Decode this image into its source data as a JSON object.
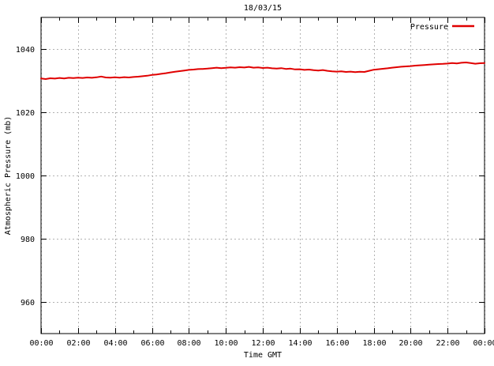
{
  "title": "18/03/15",
  "legend": {
    "label": "Pressure"
  },
  "axes": {
    "y_label": "Atmospheric Pressure (mb)",
    "x_label": "Time GMT"
  },
  "colors": {
    "line": "#e00000",
    "grid": "#b3b3b3",
    "border": "#000000",
    "background": "#ffffff",
    "text": "#000000"
  },
  "chart_data": {
    "type": "line",
    "title": "18/03/15",
    "xlabel": "Time GMT",
    "ylabel": "Atmospheric Pressure (mb)",
    "xlim_hours": [
      0,
      24
    ],
    "ylim": [
      950,
      1050
    ],
    "grid": true,
    "legend_position": "top-right-inside",
    "xticks": [
      {
        "hour": 0,
        "label": "00:00"
      },
      {
        "hour": 2,
        "label": "02:00"
      },
      {
        "hour": 4,
        "label": "04:00"
      },
      {
        "hour": 6,
        "label": "06:00"
      },
      {
        "hour": 8,
        "label": "08:00"
      },
      {
        "hour": 10,
        "label": "10:00"
      },
      {
        "hour": 12,
        "label": "12:00"
      },
      {
        "hour": 14,
        "label": "14:00"
      },
      {
        "hour": 16,
        "label": "16:00"
      },
      {
        "hour": 18,
        "label": "18:00"
      },
      {
        "hour": 20,
        "label": "20:00"
      },
      {
        "hour": 22,
        "label": "22:00"
      },
      {
        "hour": 24,
        "label": "00:00"
      }
    ],
    "x_minor_step_hours": 1,
    "yticks": [
      960,
      980,
      1000,
      1020,
      1040
    ],
    "series": [
      {
        "name": "Pressure",
        "color": "#e00000",
        "x_start_hour": 0,
        "x_step_hours": 0.25,
        "values": [
          1030.7,
          1030.5,
          1030.75,
          1030.65,
          1030.85,
          1030.7,
          1030.9,
          1030.8,
          1030.95,
          1030.85,
          1031.0,
          1030.9,
          1031.05,
          1031.3,
          1031.0,
          1030.95,
          1031.05,
          1030.95,
          1031.1,
          1031.0,
          1031.15,
          1031.25,
          1031.4,
          1031.55,
          1031.8,
          1031.95,
          1032.15,
          1032.35,
          1032.6,
          1032.8,
          1033.0,
          1033.2,
          1033.4,
          1033.5,
          1033.65,
          1033.7,
          1033.8,
          1033.95,
          1034.1,
          1033.95,
          1034.05,
          1034.2,
          1034.1,
          1034.25,
          1034.15,
          1034.35,
          1034.1,
          1034.2,
          1034.0,
          1034.1,
          1033.9,
          1033.8,
          1033.95,
          1033.7,
          1033.8,
          1033.55,
          1033.6,
          1033.4,
          1033.5,
          1033.3,
          1033.2,
          1033.35,
          1033.1,
          1032.95,
          1032.85,
          1032.95,
          1032.75,
          1032.85,
          1032.7,
          1032.8,
          1032.75,
          1033.1,
          1033.45,
          1033.6,
          1033.75,
          1033.9,
          1034.1,
          1034.25,
          1034.4,
          1034.5,
          1034.6,
          1034.75,
          1034.85,
          1034.95,
          1035.05,
          1035.15,
          1035.25,
          1035.3,
          1035.4,
          1035.55,
          1035.45,
          1035.65,
          1035.75,
          1035.55,
          1035.35,
          1035.5,
          1035.55
        ]
      }
    ]
  }
}
